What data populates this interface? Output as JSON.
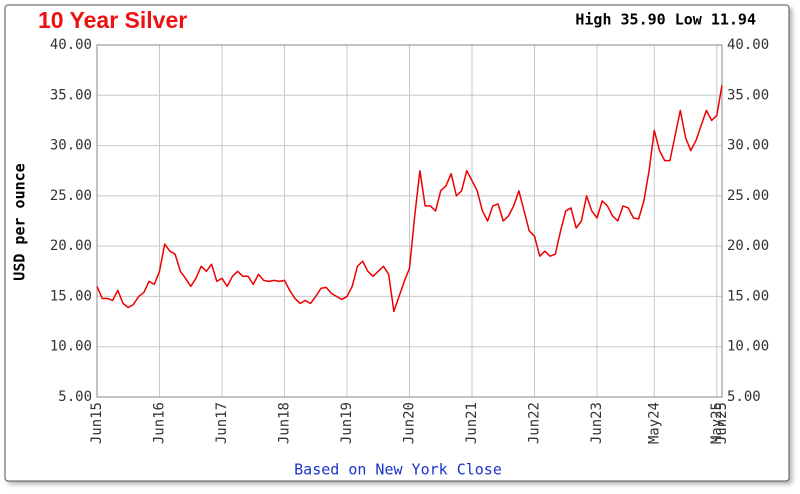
{
  "chart_data": {
    "type": "line",
    "title": "10 Year Silver",
    "annotation": "High 35.90 Low 11.94",
    "ylabel": "USD per ounce",
    "footer": "Based on New York Close",
    "x": [
      "Jun15",
      "Jul15",
      "Aug15",
      "Sep15",
      "Oct15",
      "Nov15",
      "Dec15",
      "Jan16",
      "Feb16",
      "Mar16",
      "Apr16",
      "May16",
      "Jun16",
      "Jul16",
      "Aug16",
      "Sep16",
      "Oct16",
      "Nov16",
      "Dec16",
      "Jan17",
      "Feb17",
      "Mar17",
      "Apr17",
      "May17",
      "Jun17",
      "Jul17",
      "Aug17",
      "Sep17",
      "Oct17",
      "Nov17",
      "Dec17",
      "Jan18",
      "Feb18",
      "Mar18",
      "Apr18",
      "May18",
      "Jun18",
      "Jul18",
      "Aug18",
      "Sep18",
      "Oct18",
      "Nov18",
      "Dec18",
      "Jan19",
      "Feb19",
      "Mar19",
      "Apr19",
      "May19",
      "Jun19",
      "Jul19",
      "Aug19",
      "Sep19",
      "Oct19",
      "Nov19",
      "Dec19",
      "Jan20",
      "Feb20",
      "Mar20",
      "Apr20",
      "May20",
      "Jun20",
      "Jul20",
      "Aug20",
      "Sep20",
      "Oct20",
      "Nov20",
      "Dec20",
      "Jan21",
      "Feb21",
      "Mar21",
      "Apr21",
      "May21",
      "Jun21",
      "Jul21",
      "Aug21",
      "Sep21",
      "Oct21",
      "Nov21",
      "Dec21",
      "Jan22",
      "Feb22",
      "Mar22",
      "Apr22",
      "May22",
      "Jun22",
      "Jul22",
      "Aug22",
      "Sep22",
      "Oct22",
      "Nov22",
      "Dec22",
      "Jan23",
      "Feb23",
      "Mar23",
      "Apr23",
      "May23",
      "Jun23",
      "Jul23",
      "Aug23",
      "Sep23",
      "Oct23",
      "Nov23",
      "Dec23",
      "Jan24",
      "Feb24",
      "Mar24",
      "Apr24",
      "May24",
      "Jun24",
      "Jul24",
      "Aug24",
      "Sep24",
      "Oct24",
      "Nov24",
      "Dec24",
      "Jan25",
      "Feb25",
      "Mar25",
      "Apr25",
      "May25",
      "Jun25"
    ],
    "series": [
      {
        "name": "Silver",
        "color": "#ee0000",
        "values": [
          16.0,
          14.8,
          14.8,
          14.6,
          15.6,
          14.3,
          13.9,
          14.2,
          15.0,
          15.4,
          16.5,
          16.2,
          17.5,
          20.2,
          19.5,
          19.2,
          17.5,
          16.8,
          16.0,
          16.8,
          18.0,
          17.5,
          18.2,
          16.5,
          16.8,
          16.0,
          17.0,
          17.5,
          17.0,
          17.0,
          16.2,
          17.2,
          16.6,
          16.5,
          16.6,
          16.5,
          16.6,
          15.6,
          14.8,
          14.3,
          14.6,
          14.3,
          15.0,
          15.8,
          15.9,
          15.3,
          15.0,
          14.7,
          15.0,
          16.0,
          18.0,
          18.5,
          17.5,
          17.0,
          17.5,
          18.0,
          17.2,
          13.5,
          15.0,
          16.5,
          17.8,
          23.0,
          27.5,
          24.0,
          24.0,
          23.5,
          25.5,
          26.0,
          27.2,
          25.0,
          25.5,
          27.5,
          26.5,
          25.5,
          23.5,
          22.5,
          24.0,
          24.2,
          22.5,
          23.0,
          24.0,
          25.5,
          23.5,
          21.5,
          21.0,
          19.0,
          19.5,
          19.0,
          19.2,
          21.5,
          23.5,
          23.8,
          21.8,
          22.5,
          25.0,
          23.5,
          22.8,
          24.5,
          24.0,
          23.0,
          22.5,
          24.0,
          23.8,
          22.8,
          22.7,
          24.5,
          27.5,
          31.5,
          29.5,
          28.5,
          28.5,
          31.0,
          33.5,
          30.8,
          29.5,
          30.5,
          32.0,
          33.5,
          32.5,
          33.0,
          36.0
        ]
      }
    ],
    "xticks": [
      "Jun15",
      "Jun16",
      "Jun17",
      "Jun18",
      "Jun19",
      "Jun20",
      "Jun21",
      "Jun22",
      "Jun23",
      "May24",
      "May25",
      "Jun25"
    ],
    "ylim": [
      5,
      40
    ],
    "yticks": [
      {
        "value": 5,
        "label": "5.00"
      },
      {
        "value": 10,
        "label": "10.00"
      },
      {
        "value": 15,
        "label": "15.00"
      },
      {
        "value": 20,
        "label": "20.00"
      },
      {
        "value": 25,
        "label": "25.00"
      },
      {
        "value": 30,
        "label": "30.00"
      },
      {
        "value": 35,
        "label": "35.00"
      },
      {
        "value": 40,
        "label": "40.00"
      }
    ],
    "grid": true
  }
}
